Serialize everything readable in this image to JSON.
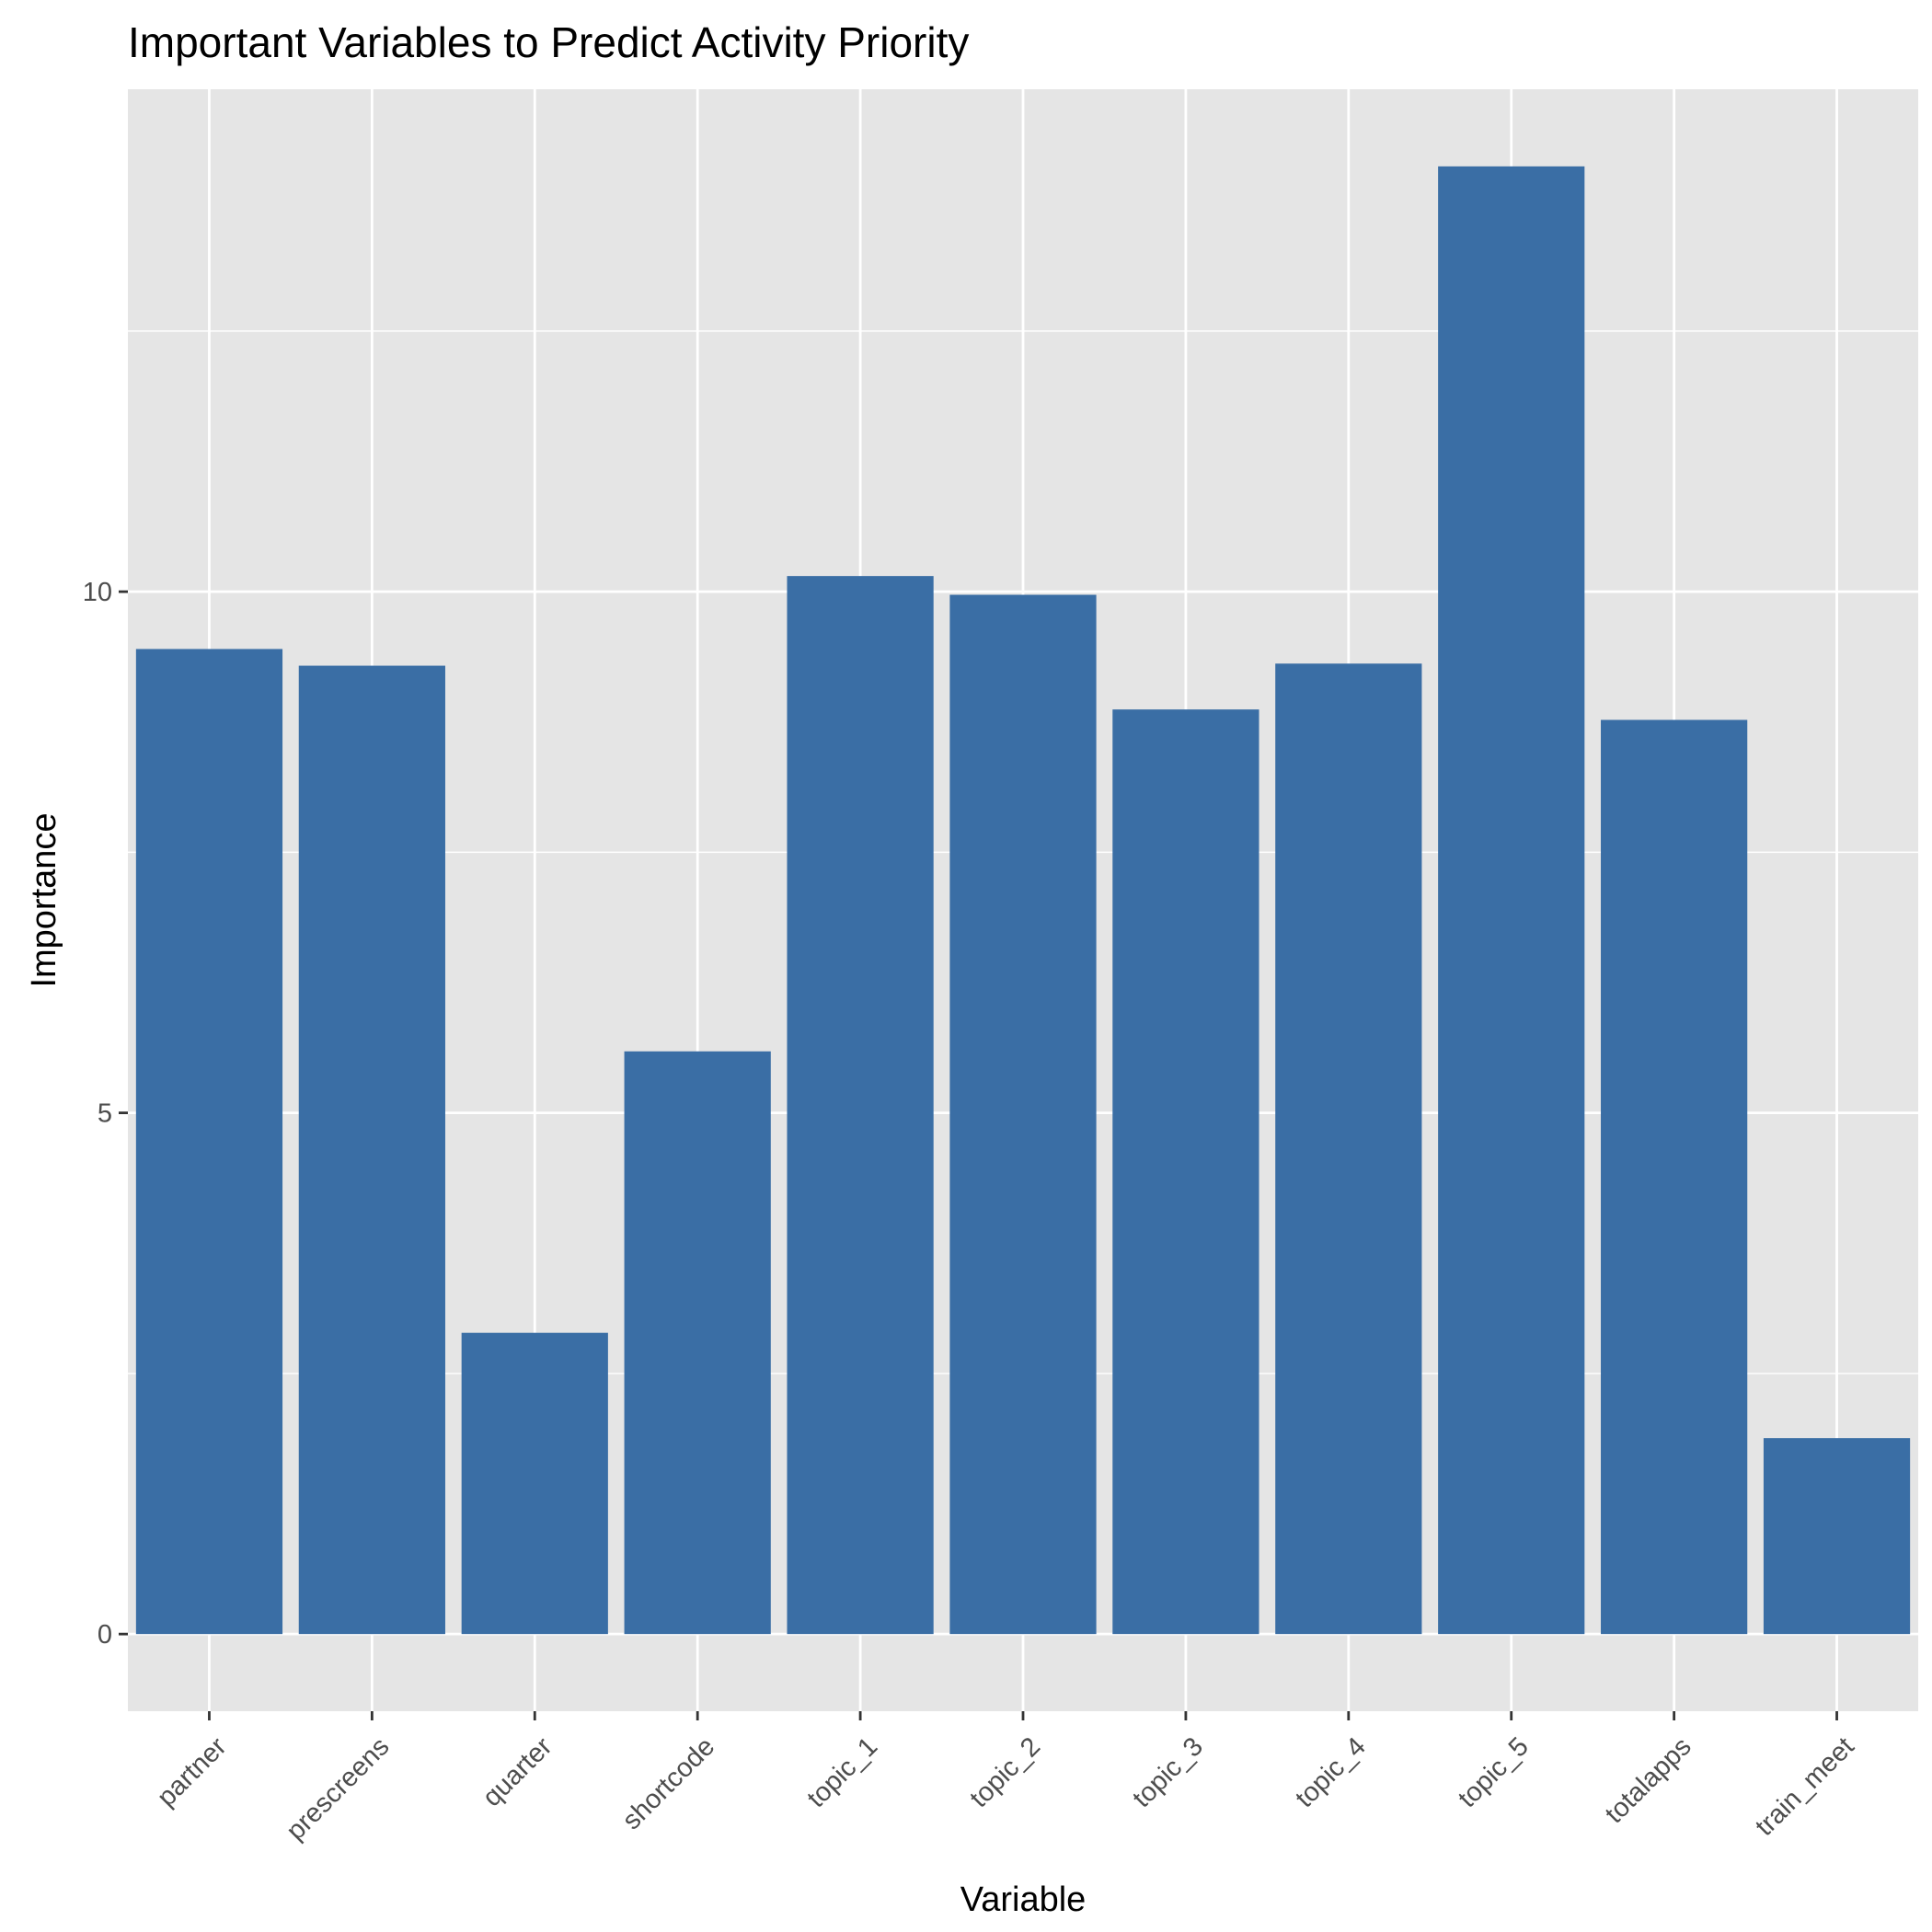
{
  "chart_data": {
    "type": "bar",
    "title": "Important Variables to Predict Activity Priority",
    "xlabel": "Variable",
    "ylabel": "Importance",
    "categories": [
      "partner",
      "prescreens",
      "quarter",
      "shortcode",
      "topic_1",
      "topic_2",
      "topic_3",
      "topic_4",
      "topic_5",
      "totalapps",
      "train_meet"
    ],
    "values": [
      9.45,
      9.29,
      2.89,
      5.59,
      10.15,
      9.97,
      8.87,
      9.31,
      14.08,
      8.77,
      1.88
    ],
    "ylim": [
      -0.74,
      14.82
    ],
    "yticks": [
      0,
      5,
      10
    ],
    "ytick_labels": [
      "0",
      "5",
      "10"
    ],
    "grid": true,
    "bar_color": "#3a6ea5",
    "panel_color": "#e5e5e5",
    "grid_color": "#ffffff"
  }
}
